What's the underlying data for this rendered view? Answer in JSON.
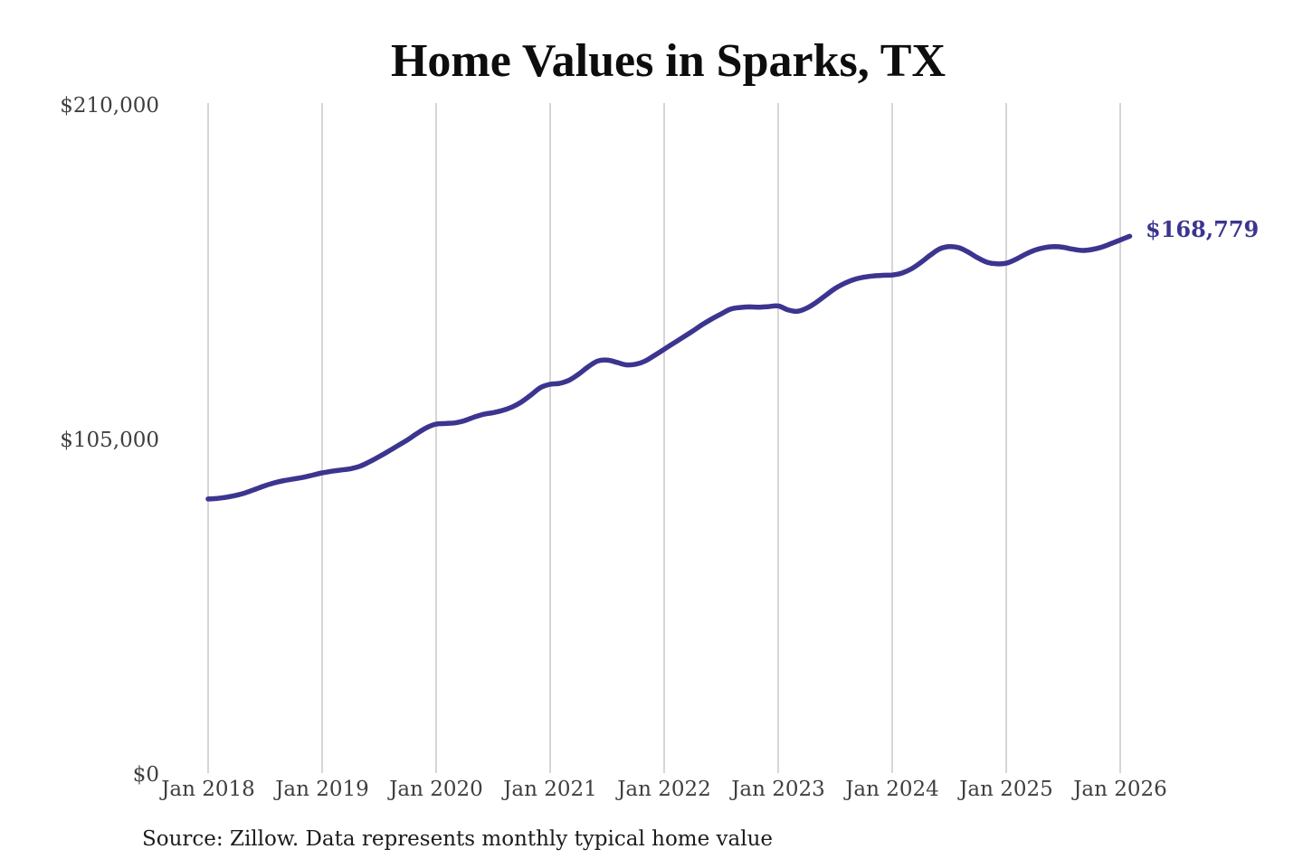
{
  "colors": {
    "line": "#3b3590",
    "grid": "#cbcbcb",
    "tick_text": "#3f3f3f",
    "title_text": "#0d0d0d",
    "end_label_text": "#3b3590"
  },
  "chart_data": {
    "type": "line",
    "title": "Home Values in Sparks, TX",
    "source": "Source: Zillow. Data represents monthly typical home value",
    "end_label": "$168,779",
    "end_value": 168779,
    "xlabel": "",
    "ylabel": "",
    "ylim": [
      0,
      210000
    ],
    "grid": "vertical-only",
    "x_tick_labels": [
      "Jan 2018",
      "Jan 2019",
      "Jan 2020",
      "Jan 2021",
      "Jan 2022",
      "Jan 2023",
      "Jan 2024",
      "Jan 2025",
      "Jan 2026"
    ],
    "y_ticks": [
      {
        "value": 0,
        "label": "$0"
      },
      {
        "value": 105000,
        "label": "$105,000"
      },
      {
        "value": 210000,
        "label": "$210,000"
      }
    ],
    "series": [
      {
        "name": "Monthly typical home value",
        "start_month": "Jan 2018",
        "frequency": "monthly",
        "values": [
          86300,
          86500,
          86900,
          87500,
          88300,
          89400,
          90500,
          91400,
          92100,
          92600,
          93100,
          93800,
          94500,
          95000,
          95400,
          95800,
          96600,
          98000,
          99600,
          101300,
          103100,
          104900,
          106900,
          108700,
          109800,
          110000,
          110200,
          110900,
          112000,
          112900,
          113400,
          114100,
          115200,
          116800,
          119000,
          121300,
          122300,
          122600,
          123600,
          125500,
          127800,
          129600,
          129900,
          129200,
          128400,
          128600,
          129600,
          131400,
          133300,
          135200,
          137100,
          139000,
          141000,
          142800,
          144400,
          145900,
          146400,
          146600,
          146500,
          146700,
          146900,
          145700,
          145200,
          146200,
          148000,
          150200,
          152400,
          154000,
          155200,
          155900,
          156300,
          156500,
          156600,
          157200,
          158500,
          160500,
          162800,
          164800,
          165500,
          165200,
          163800,
          162000,
          160600,
          160100,
          160300,
          161500,
          163100,
          164400,
          165200,
          165500,
          165300,
          164700,
          164300,
          164600,
          165300,
          166400,
          167600,
          168779
        ]
      }
    ]
  }
}
